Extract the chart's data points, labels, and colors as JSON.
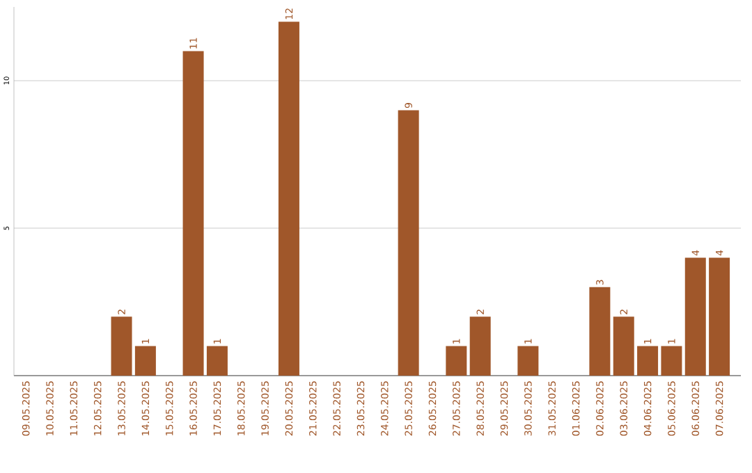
{
  "chart_data": {
    "type": "bar",
    "categories": [
      "09.05.2025",
      "10.05.2025",
      "11.05.2025",
      "12.05.2025",
      "13.05.2025",
      "14.05.2025",
      "15.05.2025",
      "16.05.2025",
      "17.05.2025",
      "18.05.2025",
      "19.05.2025",
      "20.05.2025",
      "21.05.2025",
      "22.05.2025",
      "23.05.2025",
      "24.05.2025",
      "25.05.2025",
      "26.05.2025",
      "27.05.2025",
      "28.05.2025",
      "29.05.2025",
      "30.05.2025",
      "31.05.2025",
      "01.06.2025",
      "02.06.2025",
      "03.06.2025",
      "04.06.2025",
      "05.06.2025",
      "06.06.2025",
      "07.06.2025"
    ],
    "values": [
      0,
      0,
      0,
      0,
      2,
      1,
      0,
      11,
      1,
      0,
      0,
      12,
      0,
      0,
      0,
      0,
      9,
      0,
      1,
      2,
      0,
      1,
      0,
      0,
      3,
      2,
      1,
      1,
      4,
      4
    ],
    "value_labels": [
      null,
      null,
      null,
      null,
      "2",
      "1",
      null,
      "11",
      "1",
      null,
      null,
      "12",
      null,
      null,
      null,
      null,
      "9",
      null,
      "1",
      "2",
      null,
      "1",
      null,
      null,
      "3",
      "2",
      "1",
      "1",
      "4",
      "4"
    ],
    "color": "#a0572a",
    "ylim": [
      0,
      12.5
    ],
    "yticks": [
      5,
      10
    ],
    "grid": "y"
  }
}
